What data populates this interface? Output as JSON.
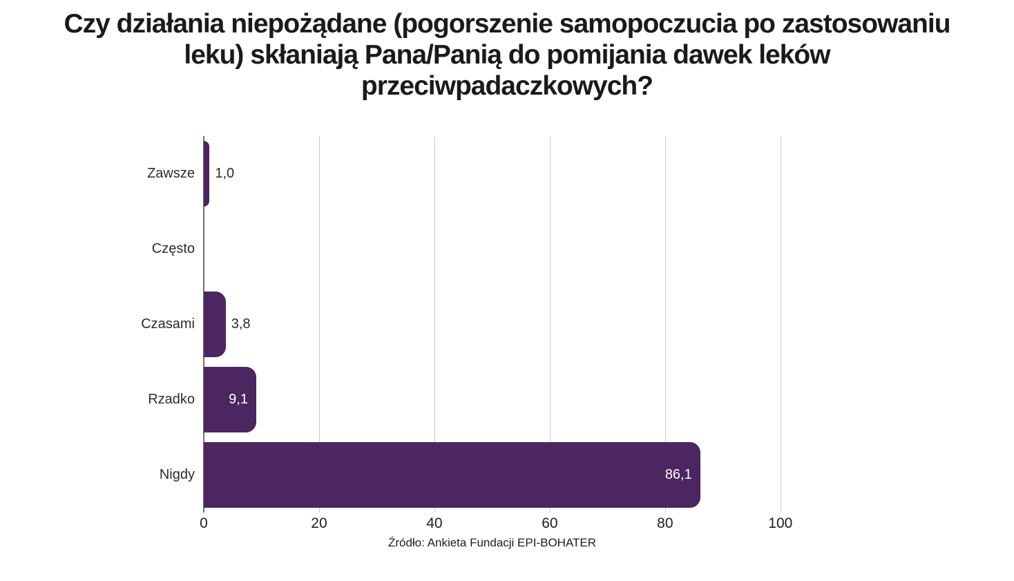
{
  "title_lines": [
    "Czy działania niepożądane (pogorszenie samopoczucia po zastosowaniu",
    "leku) skłaniają Pana/Panią do pomijania dawek leków",
    "przeciwpadaczkowych?"
  ],
  "chart_data": {
    "type": "bar",
    "orientation": "horizontal",
    "title": "Czy działania niepożądane (pogorszenie samopoczucia po zastosowaniu leku) skłaniają Pana/Panią do pomijania dawek leków przeciwpadaczkowych?",
    "categories": [
      "Zawsze",
      "Często",
      "Czasami",
      "Rzadko",
      "Nigdy"
    ],
    "values": [
      1.0,
      0.0,
      3.8,
      9.1,
      86.1
    ],
    "value_labels": [
      "1,0",
      "",
      "3,8",
      "9,1",
      "86,1"
    ],
    "xlabel": "",
    "ylabel": "",
    "xticks": [
      0,
      20,
      40,
      60,
      80,
      100
    ],
    "xlim": [
      0,
      113.8
    ],
    "grid": true,
    "legend": false,
    "bar_color": "#4B2660",
    "value_label_color_inside": "#FFFFFF",
    "value_label_color_outside": "#2B2B2B",
    "source_note": "Źródło: Ankieta Fundacji EPI-BOHATER"
  }
}
